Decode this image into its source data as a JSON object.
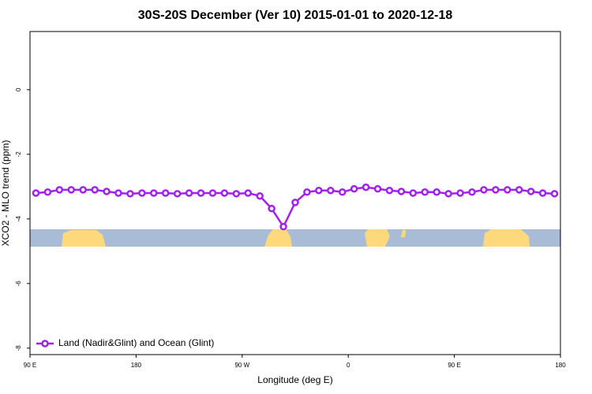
{
  "chart_data": {
    "type": "line",
    "title": "30S-20S December (Ver 10)   2015-01-01 to 2020-12-18",
    "xlabel": "Longitude (deg E)",
    "ylabel": "XCO2 - MLO trend (ppm)",
    "x": [
      95,
      105,
      115,
      125,
      135,
      145,
      155,
      165,
      175,
      185,
      195,
      205,
      215,
      225,
      235,
      245,
      255,
      265,
      275,
      285,
      295,
      305,
      315,
      325,
      335,
      345,
      355,
      365,
      375,
      385,
      395,
      405,
      415,
      425,
      435,
      445,
      455,
      465,
      475,
      485,
      495,
      505,
      515,
      525,
      535
    ],
    "series": [
      {
        "name": "Land (Nadir&Glint) and Ocean (Glint)",
        "color": "#a020f0",
        "values": [
          -3.2,
          -3.17,
          -3.1,
          -3.1,
          -3.1,
          -3.1,
          -3.15,
          -3.2,
          -3.22,
          -3.2,
          -3.2,
          -3.2,
          -3.22,
          -3.2,
          -3.2,
          -3.2,
          -3.2,
          -3.22,
          -3.2,
          -3.29,
          -3.68,
          -4.24,
          -3.49,
          -3.17,
          -3.12,
          -3.12,
          -3.17,
          -3.07,
          -3.02,
          -3.07,
          -3.12,
          -3.15,
          -3.2,
          -3.17,
          -3.17,
          -3.22,
          -3.2,
          -3.17,
          -3.1,
          -3.1,
          -3.1,
          -3.1,
          -3.15,
          -3.2,
          -3.22
        ]
      }
    ],
    "xlim": [
      90,
      540
    ],
    "xticks": [
      {
        "value": 90,
        "label": "90 E"
      },
      180,
      {
        "value": 270,
        "label": "90 W"
      },
      {
        "value": 360,
        "label": "0"
      },
      {
        "value": 450,
        "label": "90 E"
      },
      {
        "value": 540,
        "label": "180"
      }
    ],
    "ylim": [
      -8.2,
      1.8
    ],
    "yticks": [
      -8,
      -6,
      -4,
      -2,
      0
    ],
    "legend": "bottom-left"
  }
}
